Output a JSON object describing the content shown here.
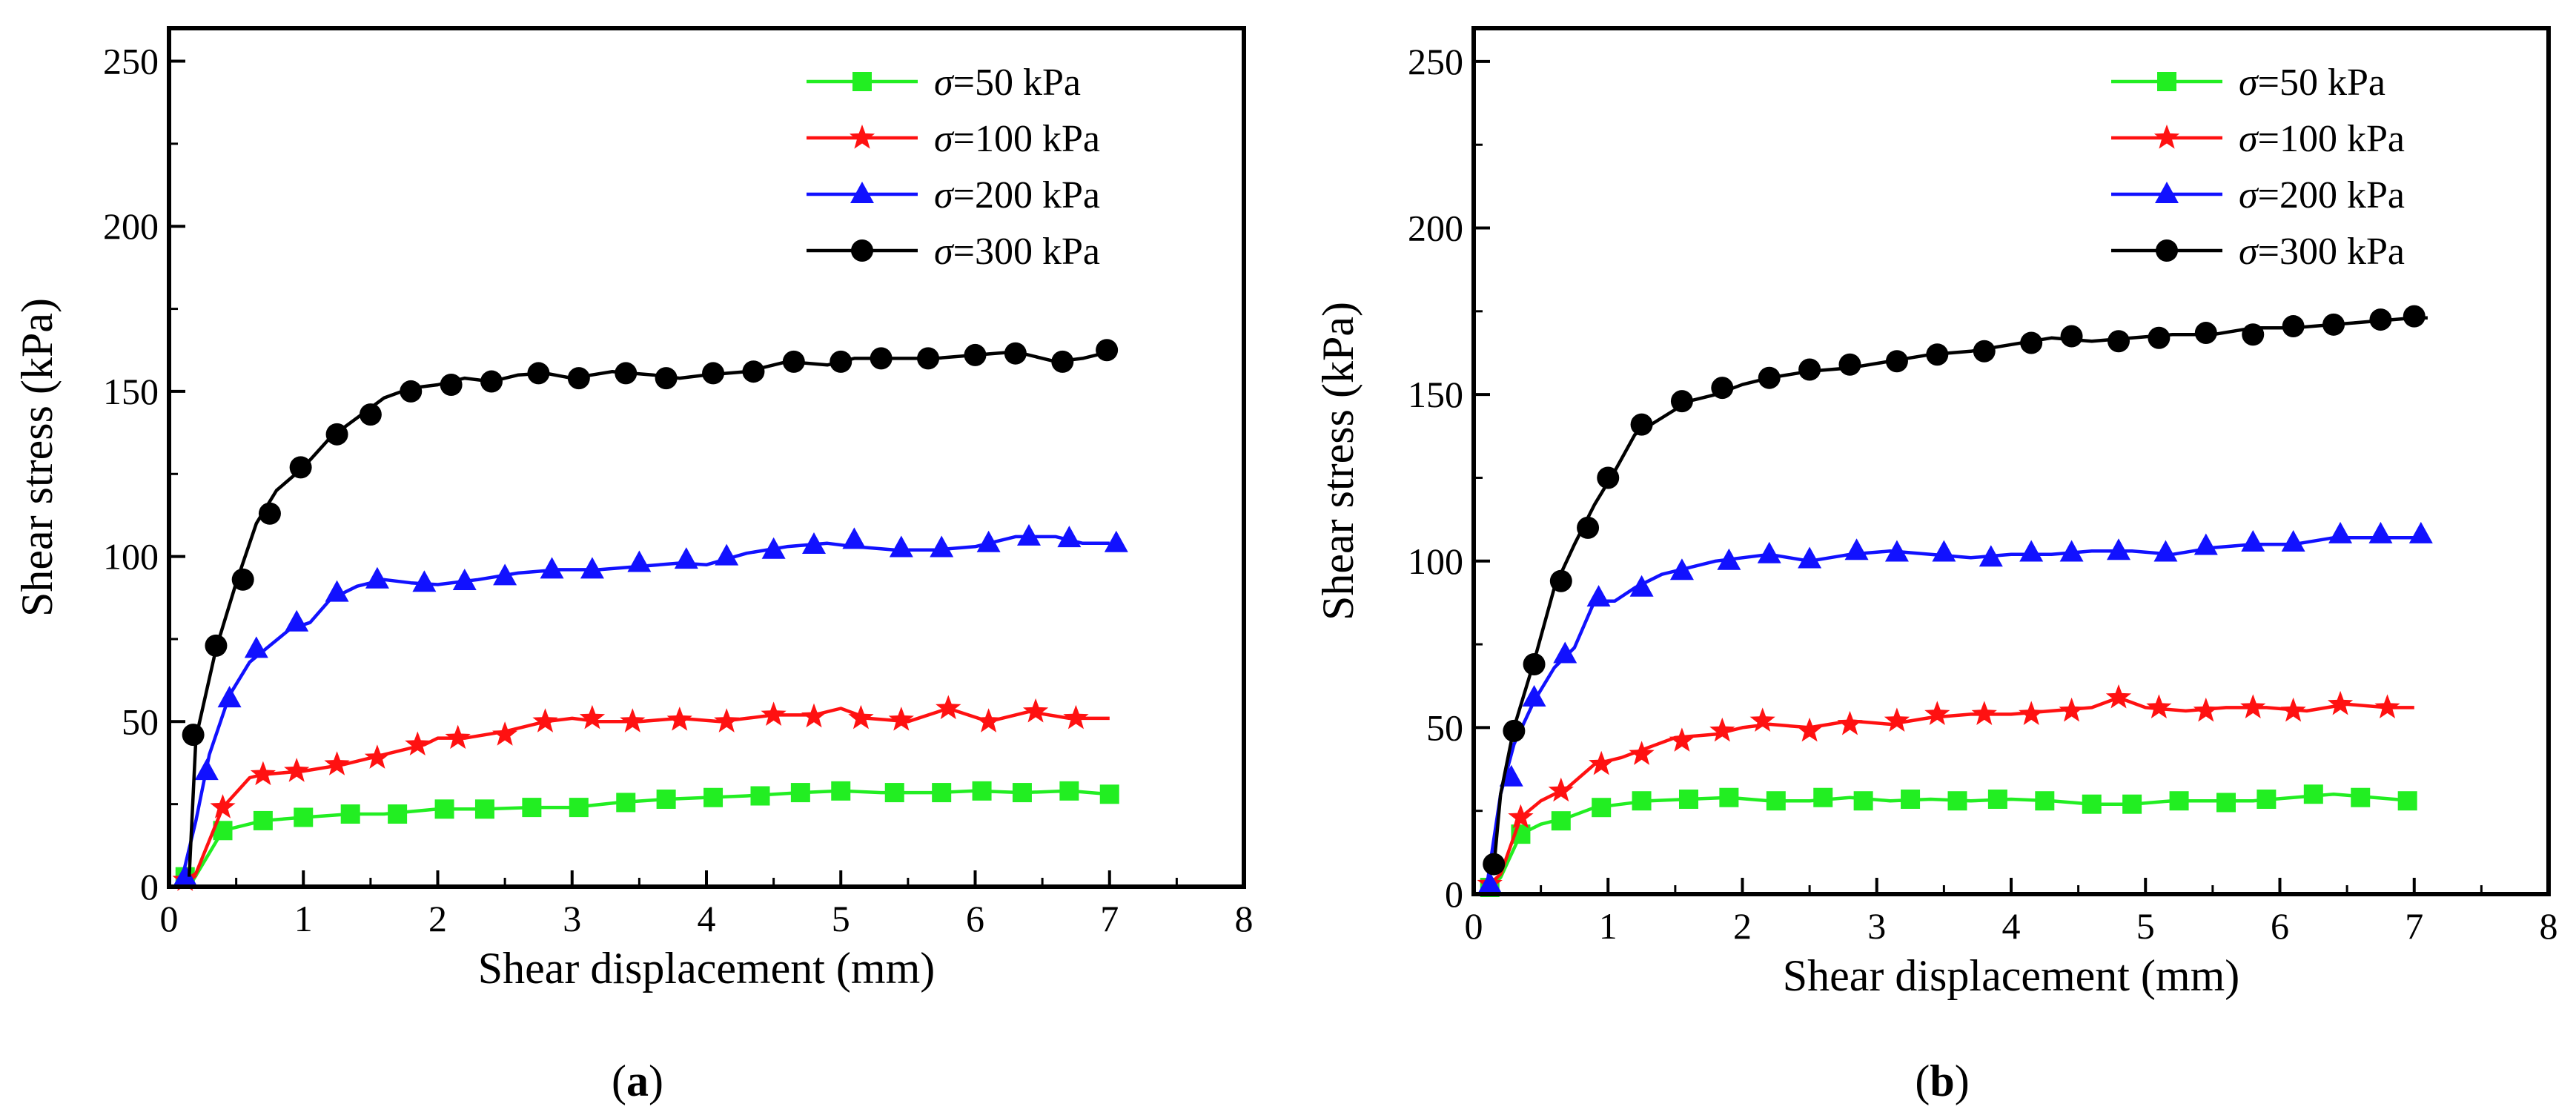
{
  "chart_data": [
    {
      "type": "line",
      "panel_label": "a",
      "xlabel": "Shear displacement (mm)",
      "ylabel": "Shear stress (kPa)",
      "xlim": [
        0,
        8
      ],
      "ylim": [
        0,
        260
      ],
      "xticks": [
        0,
        1,
        2,
        3,
        4,
        5,
        6,
        7,
        8
      ],
      "yticks": [
        0,
        50,
        100,
        150,
        200,
        250
      ],
      "xtick_labels": [
        "0",
        "1",
        "2",
        "3",
        "4",
        "5",
        "6",
        "7",
        "8"
      ],
      "ytick_labels": [
        "0",
        "50",
        "100",
        "150",
        "200",
        "250"
      ],
      "grid": false,
      "legend_position": "top-right",
      "series": [
        {
          "name": "σ=50 kPa",
          "symbol": "σ",
          "label": "=50 kPa",
          "color": "#22ee22",
          "marker": "square",
          "x": [
            0.12,
            0.18,
            0.4,
            0.7,
            1.0,
            1.35,
            1.6,
            2.0,
            2.35,
            2.7,
            3.0,
            3.35,
            3.7,
            4.0,
            4.3,
            4.7,
            5.0,
            5.3,
            5.7,
            6.0,
            6.35,
            6.7,
            7.0
          ],
          "y": [
            3,
            2,
            17,
            20,
            21,
            22,
            22,
            23.5,
            23.5,
            24,
            24,
            25.5,
            26.5,
            27,
            27.5,
            28.5,
            29,
            28.5,
            28.5,
            29,
            28.5,
            29,
            28
          ],
          "marker_x": [
            0.12,
            0.4,
            0.7,
            1.0,
            1.35,
            1.7,
            2.05,
            2.35,
            2.7,
            3.05,
            3.4,
            3.7,
            4.05,
            4.4,
            4.7,
            5.0,
            5.4,
            5.75,
            6.05,
            6.35,
            6.7,
            7.0
          ],
          "marker_y": [
            3,
            17,
            20,
            21,
            22,
            22,
            23.5,
            23.5,
            24,
            24,
            25.5,
            26.5,
            27,
            27.5,
            28.5,
            29,
            28.5,
            28.5,
            29,
            28.5,
            29,
            28
          ]
        },
        {
          "name": "σ=100 kPa",
          "symbol": "σ",
          "label": "=100 kPa",
          "color": "#ff1111",
          "marker": "star",
          "x": [
            0.12,
            0.2,
            0.4,
            0.6,
            0.7,
            1.0,
            1.3,
            1.6,
            1.9,
            2.0,
            2.2,
            2.5,
            2.8,
            3.0,
            3.2,
            3.5,
            3.8,
            4.1,
            4.3,
            4.5,
            4.8,
            5.0,
            5.2,
            5.5,
            5.8,
            6.1,
            6.4,
            6.7,
            7.0
          ],
          "y": [
            2,
            4,
            24,
            33,
            34,
            35,
            37,
            40,
            43,
            45,
            45,
            47,
            50,
            51,
            50,
            50,
            51,
            50,
            51,
            52,
            52,
            54,
            51,
            50,
            54,
            50,
            53,
            51,
            51
          ],
          "marker_x": [
            0.12,
            0.4,
            0.7,
            0.95,
            1.25,
            1.55,
            1.85,
            2.15,
            2.5,
            2.8,
            3.15,
            3.45,
            3.8,
            4.15,
            4.5,
            4.8,
            5.15,
            5.45,
            5.8,
            6.1,
            6.45,
            6.75
          ],
          "marker_y": [
            2,
            24,
            34,
            35,
            37,
            39,
            43,
            45,
            46,
            50,
            51,
            50,
            50.5,
            50,
            52,
            51.5,
            51,
            50.5,
            54,
            50,
            53,
            51
          ]
        },
        {
          "name": "σ=200 kPa",
          "symbol": "σ",
          "label": "=200 kPa",
          "color": "#1111ff",
          "marker": "triangle",
          "x": [
            0.1,
            0.2,
            0.3,
            0.45,
            0.6,
            0.75,
            0.9,
            1.05,
            1.2,
            1.4,
            1.6,
            1.8,
            2.0,
            2.3,
            2.6,
            2.9,
            3.2,
            3.5,
            3.8,
            4.0,
            4.3,
            4.6,
            4.9,
            5.1,
            5.4,
            5.7,
            6.0,
            6.3,
            6.6,
            6.8,
            7.0
          ],
          "y": [
            3,
            20,
            40,
            58,
            68,
            73,
            78,
            80,
            87,
            91,
            93,
            92,
            91.5,
            93,
            95,
            96,
            96,
            97,
            98,
            97.5,
            101,
            103,
            104,
            103,
            102,
            102,
            103,
            106,
            106,
            104,
            104
          ],
          "marker_x": [
            0.12,
            0.28,
            0.45,
            0.65,
            0.95,
            1.25,
            1.55,
            1.9,
            2.2,
            2.5,
            2.85,
            3.15,
            3.5,
            3.85,
            4.15,
            4.5,
            4.8,
            5.1,
            5.45,
            5.75,
            6.1,
            6.4,
            6.7,
            7.05
          ],
          "marker_y": [
            3,
            35,
            57,
            72,
            80,
            89,
            93,
            92,
            92.5,
            94,
            96,
            96,
            98,
            99,
            100,
            102,
            103.5,
            105,
            102.5,
            102.5,
            104,
            106,
            105.5,
            104
          ]
        },
        {
          "name": "σ=300 kPa",
          "symbol": "σ",
          "label": "=300 kPa",
          "color": "#000000",
          "marker": "circle",
          "x": [
            0.15,
            0.2,
            0.35,
            0.5,
            0.65,
            0.8,
            1.0,
            1.2,
            1.4,
            1.6,
            1.8,
            2.0,
            2.2,
            2.4,
            2.6,
            2.8,
            3.0,
            3.3,
            3.6,
            3.8,
            4.0,
            4.3,
            4.6,
            4.9,
            5.1,
            5.4,
            5.7,
            6.0,
            6.3,
            6.6,
            6.8,
            7.0
          ],
          "y": [
            3,
            45,
            72,
            92,
            110,
            120,
            127,
            136,
            142,
            148,
            151,
            152,
            154,
            153,
            155,
            155.5,
            154,
            156,
            155,
            154,
            155,
            156,
            159,
            158,
            160,
            160,
            160,
            161,
            162,
            159,
            160,
            162
          ],
          "marker_x": [
            0.18,
            0.35,
            0.55,
            0.75,
            0.98,
            1.25,
            1.5,
            1.8,
            2.1,
            2.4,
            2.75,
            3.05,
            3.4,
            3.7,
            4.05,
            4.35,
            4.65,
            5.0,
            5.3,
            5.65,
            6.0,
            6.3,
            6.65,
            6.98
          ],
          "marker_y": [
            46,
            73,
            93,
            113,
            127,
            137,
            143,
            150,
            152,
            153,
            155.5,
            154,
            155.5,
            154,
            155.5,
            156,
            159,
            159,
            160,
            160,
            161,
            161.5,
            159,
            162.5
          ]
        }
      ]
    },
    {
      "type": "line",
      "panel_label": "b",
      "xlabel": "Shear displacement (mm)",
      "ylabel": "Shear stress (kPa)",
      "xlim": [
        0,
        8
      ],
      "ylim": [
        0,
        260
      ],
      "xticks": [
        0,
        1,
        2,
        3,
        4,
        5,
        6,
        7,
        8
      ],
      "yticks": [
        0,
        50,
        100,
        150,
        200,
        250
      ],
      "xtick_labels": [
        "0",
        "1",
        "2",
        "3",
        "4",
        "5",
        "6",
        "7",
        "8"
      ],
      "ytick_labels": [
        "0",
        "50",
        "100",
        "150",
        "200",
        "250"
      ],
      "grid": false,
      "legend_position": "top-right",
      "series": [
        {
          "name": "σ=50 kPa",
          "symbol": "σ",
          "label": "=50 kPa",
          "color": "#22ee22",
          "marker": "square",
          "x": [
            0.12,
            0.2,
            0.35,
            0.5,
            0.7,
            0.9,
            1.1,
            1.3,
            1.6,
            1.9,
            2.2,
            2.5,
            2.8,
            3.1,
            3.4,
            3.7,
            4.0,
            4.3,
            4.6,
            4.9,
            5.2,
            5.5,
            5.8,
            6.1,
            6.4,
            6.7,
            7.0
          ],
          "y": [
            2,
            5,
            18,
            21,
            23,
            26,
            27,
            28,
            28.5,
            29,
            28,
            28,
            29,
            28,
            28.5,
            28,
            28.5,
            28,
            27,
            27,
            28,
            28,
            28,
            29,
            30,
            29,
            28
          ],
          "marker_x": [
            0.12,
            0.35,
            0.65,
            0.95,
            1.25,
            1.6,
            1.9,
            2.25,
            2.6,
            2.9,
            3.25,
            3.6,
            3.9,
            4.25,
            4.6,
            4.9,
            5.25,
            5.6,
            5.9,
            6.25,
            6.6,
            6.95
          ],
          "marker_y": [
            2,
            18,
            22,
            26,
            28,
            28.5,
            29,
            28,
            29,
            28,
            28.5,
            28,
            28.5,
            28,
            27,
            27,
            28,
            27.5,
            28.5,
            30,
            29,
            28
          ]
        },
        {
          "name": "σ=100 kPa",
          "symbol": "σ",
          "label": "=100 kPa",
          "color": "#ff1111",
          "marker": "star",
          "x": [
            0.12,
            0.2,
            0.35,
            0.5,
            0.7,
            0.9,
            1.1,
            1.3,
            1.5,
            1.8,
            2.0,
            2.2,
            2.5,
            2.8,
            3.1,
            3.4,
            3.7,
            4.0,
            4.3,
            4.6,
            4.8,
            5.0,
            5.3,
            5.6,
            5.9,
            6.2,
            6.5,
            6.8,
            7.0
          ],
          "y": [
            3,
            6,
            23,
            28,
            32,
            39,
            41,
            44,
            47,
            48,
            50,
            51,
            50,
            52,
            51,
            53,
            54,
            54,
            55,
            56,
            59,
            56,
            55,
            56,
            56,
            55,
            57,
            56,
            56
          ],
          "marker_x": [
            0.12,
            0.35,
            0.65,
            0.95,
            1.25,
            1.55,
            1.85,
            2.15,
            2.5,
            2.8,
            3.15,
            3.45,
            3.8,
            4.15,
            4.45,
            4.8,
            5.1,
            5.45,
            5.8,
            6.1,
            6.45,
            6.8
          ],
          "marker_y": [
            3,
            23,
            31,
            39,
            42,
            46,
            49,
            52,
            49,
            51,
            52,
            54,
            54,
            54,
            55,
            59,
            56,
            55,
            56,
            55,
            57,
            56
          ]
        },
        {
          "name": "σ=200 kPa",
          "symbol": "σ",
          "label": "=200 kPa",
          "color": "#1111ff",
          "marker": "triangle",
          "x": [
            0.1,
            0.2,
            0.3,
            0.45,
            0.6,
            0.75,
            0.9,
            1.05,
            1.2,
            1.4,
            1.6,
            1.8,
            2.0,
            2.2,
            2.5,
            2.8,
            3.1,
            3.4,
            3.7,
            4.0,
            4.3,
            4.6,
            4.9,
            5.2,
            5.5,
            5.8,
            6.1,
            6.4,
            6.7,
            7.0
          ],
          "y": [
            3,
            30,
            45,
            58,
            68,
            74,
            88,
            88,
            92,
            96,
            98,
            100,
            101,
            102,
            100,
            102,
            103,
            102,
            101,
            102,
            102,
            103,
            103,
            102,
            104,
            105,
            105,
            107,
            107,
            107
          ],
          "marker_x": [
            0.12,
            0.28,
            0.45,
            0.68,
            0.93,
            1.25,
            1.55,
            1.9,
            2.2,
            2.5,
            2.85,
            3.15,
            3.5,
            3.85,
            4.15,
            4.45,
            4.8,
            5.15,
            5.45,
            5.8,
            6.1,
            6.45,
            6.75,
            7.05
          ],
          "marker_y": [
            3,
            35,
            59,
            72,
            89,
            92,
            97,
            100,
            102,
            100.5,
            103,
            102.5,
            102.5,
            101,
            102.5,
            102.5,
            103,
            102.5,
            104.5,
            105.5,
            105.5,
            108,
            108,
            108
          ]
        },
        {
          "name": "σ=300 kPa",
          "symbol": "σ",
          "label": "=300 kPa",
          "color": "#000000",
          "marker": "circle",
          "x": [
            0.15,
            0.2,
            0.3,
            0.45,
            0.6,
            0.75,
            0.9,
            1.05,
            1.2,
            1.4,
            1.6,
            1.8,
            2.0,
            2.2,
            2.5,
            2.8,
            3.1,
            3.4,
            3.7,
            4.0,
            4.3,
            4.6,
            4.9,
            5.2,
            5.5,
            5.8,
            6.1,
            6.4,
            6.7,
            7.0,
            7.1
          ],
          "y": [
            8,
            30,
            50,
            70,
            92,
            105,
            117,
            127,
            138,
            143,
            148,
            150,
            153,
            155,
            157,
            158,
            160,
            162,
            163,
            165,
            167,
            166,
            167,
            168,
            168,
            170,
            170,
            171,
            172,
            173,
            173
          ],
          "marker_x": [
            0.15,
            0.3,
            0.45,
            0.65,
            0.85,
            1.0,
            1.25,
            1.55,
            1.85,
            2.2,
            2.5,
            2.8,
            3.15,
            3.45,
            3.8,
            4.15,
            4.45,
            4.8,
            5.1,
            5.45,
            5.8,
            6.1,
            6.4,
            6.75,
            7.0
          ],
          "marker_y": [
            9,
            49,
            69,
            94,
            110,
            125,
            141,
            148,
            152,
            155,
            157.5,
            159,
            160,
            162,
            163,
            165.5,
            167.5,
            166,
            167,
            168.5,
            168,
            170.5,
            171,
            172.5,
            173.5
          ]
        }
      ]
    }
  ]
}
